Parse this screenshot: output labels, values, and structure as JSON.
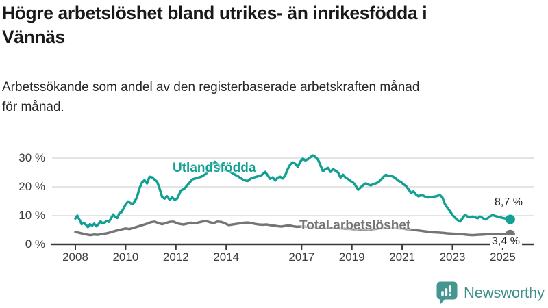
{
  "header": {
    "title": "Högre arbetslöshet bland utrikes- än inrikesfödda i\nVännäs",
    "subtitle": "Arbetssökande som andel av den registerbaserade arbetskraften månad\nför månad."
  },
  "footer": {
    "brand": "Newsworthy",
    "logo_icon": "bar-chart-speech-bubble-icon",
    "brand_color": "#3e8e89",
    "logo_bubble_color": "#459690"
  },
  "chart_data": {
    "type": "line",
    "title": "Högre arbetslöshet bland utrikes- än inrikesfödda i Vännäs",
    "subtitle": "Arbetssökande som andel av den registerbaserade arbetskraften månad för månad.",
    "unit": "%",
    "xlim": [
      2007.8,
      2025.6
    ],
    "ylim": [
      0,
      33
    ],
    "grid": "horizontal",
    "axis_color": "#3a3a3a",
    "grid_color": "#dcdcdc",
    "x_ticks": [
      {
        "value": 2008,
        "label": "2008"
      },
      {
        "value": 2010,
        "label": "2010"
      },
      {
        "value": 2012,
        "label": "2012"
      },
      {
        "value": 2014,
        "label": "2014"
      },
      {
        "value": 2017,
        "label": "2017"
      },
      {
        "value": 2019,
        "label": "2019"
      },
      {
        "value": 2021,
        "label": "2021"
      },
      {
        "value": 2023,
        "label": "2023"
      },
      {
        "value": 2025,
        "label": "2025"
      }
    ],
    "y_ticks": [
      {
        "value": 0,
        "label": "0 %"
      },
      {
        "value": 10,
        "label": "10 %"
      },
      {
        "value": 20,
        "label": "20 %"
      },
      {
        "value": 30,
        "label": "30 %"
      }
    ],
    "series": [
      {
        "name": "Utlandsfödda",
        "color": "#12a092",
        "end_label": "8,7 %",
        "end_value": 8.7,
        "points": [
          [
            2008.0,
            9.0
          ],
          [
            2008.08,
            10.0
          ],
          [
            2008.17,
            8.5
          ],
          [
            2008.25,
            7.0
          ],
          [
            2008.33,
            7.5
          ],
          [
            2008.42,
            6.8
          ],
          [
            2008.5,
            6.0
          ],
          [
            2008.58,
            7.0
          ],
          [
            2008.67,
            6.5
          ],
          [
            2008.75,
            7.2
          ],
          [
            2008.83,
            6.3
          ],
          [
            2008.92,
            7.0
          ],
          [
            2009.0,
            8.0
          ],
          [
            2009.08,
            7.4
          ],
          [
            2009.17,
            7.6
          ],
          [
            2009.25,
            8.2
          ],
          [
            2009.33,
            7.8
          ],
          [
            2009.42,
            9.0
          ],
          [
            2009.5,
            10.4
          ],
          [
            2009.58,
            9.6
          ],
          [
            2009.67,
            9.2
          ],
          [
            2009.75,
            10.8
          ],
          [
            2009.83,
            11.2
          ],
          [
            2009.92,
            12.5
          ],
          [
            2010.0,
            13.9
          ],
          [
            2010.1,
            14.9
          ],
          [
            2010.2,
            14.3
          ],
          [
            2010.3,
            14.1
          ],
          [
            2010.45,
            16.3
          ],
          [
            2010.55,
            19.5
          ],
          [
            2010.65,
            21.5
          ],
          [
            2010.75,
            22.3
          ],
          [
            2010.85,
            21.2
          ],
          [
            2010.95,
            23.5
          ],
          [
            2011.05,
            23.3
          ],
          [
            2011.15,
            22.5
          ],
          [
            2011.25,
            21.8
          ],
          [
            2011.35,
            19.5
          ],
          [
            2011.45,
            16.5
          ],
          [
            2011.55,
            15.9
          ],
          [
            2011.65,
            16.7
          ],
          [
            2011.75,
            15.5
          ],
          [
            2011.85,
            16.3
          ],
          [
            2011.95,
            15.5
          ],
          [
            2012.05,
            15.9
          ],
          [
            2012.2,
            18.7
          ],
          [
            2012.35,
            19.5
          ],
          [
            2012.5,
            21.0
          ],
          [
            2012.65,
            22.6
          ],
          [
            2012.8,
            23.0
          ],
          [
            2013.0,
            23.5
          ],
          [
            2013.2,
            24.5
          ],
          [
            2013.4,
            27.5
          ],
          [
            2013.55,
            28.7
          ],
          [
            2013.7,
            27.5
          ],
          [
            2013.9,
            26.0
          ],
          [
            2014.1,
            25.5
          ],
          [
            2014.3,
            24.5
          ],
          [
            2014.5,
            23.5
          ],
          [
            2014.7,
            22.3
          ],
          [
            2014.85,
            22.0
          ],
          [
            2015.0,
            23.0
          ],
          [
            2015.2,
            23.5
          ],
          [
            2015.4,
            24.0
          ],
          [
            2015.55,
            25.2
          ],
          [
            2015.65,
            24.0
          ],
          [
            2015.75,
            22.8
          ],
          [
            2015.85,
            23.3
          ],
          [
            2015.95,
            22.2
          ],
          [
            2016.05,
            23.2
          ],
          [
            2016.15,
            23.5
          ],
          [
            2016.25,
            22.9
          ],
          [
            2016.35,
            24.0
          ],
          [
            2016.45,
            26.2
          ],
          [
            2016.55,
            27.8
          ],
          [
            2016.65,
            28.5
          ],
          [
            2016.75,
            28.0
          ],
          [
            2016.85,
            27.0
          ],
          [
            2016.95,
            28.8
          ],
          [
            2017.05,
            29.8
          ],
          [
            2017.15,
            29.2
          ],
          [
            2017.25,
            29.6
          ],
          [
            2017.35,
            30.3
          ],
          [
            2017.45,
            30.9
          ],
          [
            2017.55,
            30.4
          ],
          [
            2017.65,
            29.5
          ],
          [
            2017.75,
            27.5
          ],
          [
            2017.85,
            25.4
          ],
          [
            2017.95,
            26.2
          ],
          [
            2018.05,
            26.6
          ],
          [
            2018.15,
            25.2
          ],
          [
            2018.25,
            26.2
          ],
          [
            2018.35,
            25.6
          ],
          [
            2018.45,
            25.0
          ],
          [
            2018.55,
            23.2
          ],
          [
            2018.65,
            24.2
          ],
          [
            2018.75,
            23.2
          ],
          [
            2018.85,
            22.7
          ],
          [
            2018.95,
            22.0
          ],
          [
            2019.05,
            21.5
          ],
          [
            2019.15,
            20.4
          ],
          [
            2019.25,
            19.0
          ],
          [
            2019.35,
            19.8
          ],
          [
            2019.45,
            20.6
          ],
          [
            2019.55,
            21.2
          ],
          [
            2019.65,
            20.8
          ],
          [
            2019.75,
            20.5
          ],
          [
            2019.85,
            20.9
          ],
          [
            2019.95,
            21.2
          ],
          [
            2020.05,
            21.6
          ],
          [
            2020.15,
            22.4
          ],
          [
            2020.25,
            23.4
          ],
          [
            2020.35,
            24.2
          ],
          [
            2020.45,
            23.8
          ],
          [
            2020.55,
            23.8
          ],
          [
            2020.65,
            23.5
          ],
          [
            2020.75,
            22.9
          ],
          [
            2020.85,
            22.1
          ],
          [
            2020.95,
            21.7
          ],
          [
            2021.05,
            20.9
          ],
          [
            2021.15,
            20.3
          ],
          [
            2021.25,
            19.2
          ],
          [
            2021.35,
            17.9
          ],
          [
            2021.45,
            18.4
          ],
          [
            2021.55,
            17.3
          ],
          [
            2021.65,
            16.7
          ],
          [
            2021.75,
            17.1
          ],
          [
            2021.85,
            16.9
          ],
          [
            2021.95,
            16.4
          ],
          [
            2022.05,
            16.3
          ],
          [
            2022.2,
            16.5
          ],
          [
            2022.35,
            16.7
          ],
          [
            2022.5,
            17.1
          ],
          [
            2022.6,
            16.3
          ],
          [
            2022.7,
            14.0
          ],
          [
            2022.8,
            12.7
          ],
          [
            2022.9,
            11.6
          ],
          [
            2023.0,
            10.2
          ],
          [
            2023.1,
            9.3
          ],
          [
            2023.2,
            8.5
          ],
          [
            2023.3,
            7.9
          ],
          [
            2023.4,
            9.1
          ],
          [
            2023.5,
            10.3
          ],
          [
            2023.6,
            9.7
          ],
          [
            2023.7,
            9.4
          ],
          [
            2023.8,
            9.7
          ],
          [
            2023.9,
            9.4
          ],
          [
            2024.0,
            9.1
          ],
          [
            2024.1,
            9.7
          ],
          [
            2024.2,
            9.2
          ],
          [
            2024.3,
            8.7
          ],
          [
            2024.4,
            9.1
          ],
          [
            2024.5,
            9.8
          ],
          [
            2024.6,
            10.2
          ],
          [
            2024.7,
            9.9
          ],
          [
            2024.8,
            9.6
          ],
          [
            2024.9,
            9.4
          ],
          [
            2025.0,
            9.2
          ],
          [
            2025.1,
            9.0
          ],
          [
            2025.2,
            8.8
          ],
          [
            2025.3,
            8.7
          ]
        ]
      },
      {
        "name": "Total arbetslöshet",
        "color": "#757575",
        "end_label": "3,4 %",
        "end_value": 3.4,
        "points": [
          [
            2008.0,
            4.3
          ],
          [
            2008.15,
            4.0
          ],
          [
            2008.3,
            3.7
          ],
          [
            2008.45,
            3.4
          ],
          [
            2008.6,
            3.2
          ],
          [
            2008.75,
            3.4
          ],
          [
            2008.9,
            3.3
          ],
          [
            2009.0,
            3.5
          ],
          [
            2009.15,
            3.7
          ],
          [
            2009.3,
            3.9
          ],
          [
            2009.45,
            4.3
          ],
          [
            2009.6,
            4.7
          ],
          [
            2009.75,
            5.0
          ],
          [
            2009.9,
            5.3
          ],
          [
            2010.0,
            5.5
          ],
          [
            2010.15,
            5.3
          ],
          [
            2010.3,
            5.7
          ],
          [
            2010.45,
            6.1
          ],
          [
            2010.6,
            6.5
          ],
          [
            2010.75,
            6.9
          ],
          [
            2010.9,
            7.3
          ],
          [
            2011.0,
            7.7
          ],
          [
            2011.15,
            7.9
          ],
          [
            2011.3,
            7.4
          ],
          [
            2011.45,
            7.0
          ],
          [
            2011.6,
            7.4
          ],
          [
            2011.75,
            7.8
          ],
          [
            2011.9,
            7.9
          ],
          [
            2012.0,
            7.5
          ],
          [
            2012.15,
            7.1
          ],
          [
            2012.3,
            6.9
          ],
          [
            2012.45,
            7.2
          ],
          [
            2012.6,
            7.5
          ],
          [
            2012.75,
            7.3
          ],
          [
            2012.9,
            7.6
          ],
          [
            2013.05,
            7.9
          ],
          [
            2013.2,
            8.1
          ],
          [
            2013.35,
            7.7
          ],
          [
            2013.5,
            7.4
          ],
          [
            2013.65,
            7.9
          ],
          [
            2013.8,
            7.8
          ],
          [
            2013.95,
            7.3
          ],
          [
            2014.1,
            6.7
          ],
          [
            2014.25,
            6.9
          ],
          [
            2014.4,
            7.1
          ],
          [
            2014.55,
            7.3
          ],
          [
            2014.7,
            7.5
          ],
          [
            2014.85,
            7.6
          ],
          [
            2015.0,
            7.4
          ],
          [
            2015.15,
            7.1
          ],
          [
            2015.3,
            6.9
          ],
          [
            2015.45,
            6.8
          ],
          [
            2015.6,
            6.9
          ],
          [
            2015.75,
            6.7
          ],
          [
            2015.9,
            6.5
          ],
          [
            2016.05,
            6.3
          ],
          [
            2016.2,
            6.2
          ],
          [
            2016.35,
            6.4
          ],
          [
            2016.5,
            6.6
          ],
          [
            2016.65,
            6.3
          ],
          [
            2016.8,
            6.1
          ],
          [
            2017.0,
            6.2
          ],
          [
            2017.25,
            6.1
          ],
          [
            2017.5,
            6.0
          ],
          [
            2017.75,
            5.9
          ],
          [
            2018.0,
            5.8
          ],
          [
            2018.25,
            5.7
          ],
          [
            2018.5,
            5.6
          ],
          [
            2018.75,
            5.4
          ],
          [
            2019.0,
            5.3
          ],
          [
            2019.25,
            5.2
          ],
          [
            2019.5,
            5.1
          ],
          [
            2019.75,
            5.2
          ],
          [
            2020.0,
            5.4
          ],
          [
            2020.25,
            5.7
          ],
          [
            2020.5,
            5.8
          ],
          [
            2020.75,
            5.7
          ],
          [
            2021.0,
            5.5
          ],
          [
            2021.25,
            5.2
          ],
          [
            2021.5,
            5.0
          ],
          [
            2021.75,
            4.7
          ],
          [
            2022.0,
            4.4
          ],
          [
            2022.2,
            4.2
          ],
          [
            2022.4,
            4.1
          ],
          [
            2022.6,
            4.0
          ],
          [
            2022.8,
            3.8
          ],
          [
            2023.0,
            3.7
          ],
          [
            2023.2,
            3.6
          ],
          [
            2023.4,
            3.5
          ],
          [
            2023.6,
            3.3
          ],
          [
            2023.8,
            3.2
          ],
          [
            2024.0,
            3.3
          ],
          [
            2024.2,
            3.4
          ],
          [
            2024.4,
            3.5
          ],
          [
            2024.6,
            3.6
          ],
          [
            2024.8,
            3.5
          ],
          [
            2025.0,
            3.4
          ],
          [
            2025.15,
            3.4
          ],
          [
            2025.3,
            3.4
          ]
        ]
      }
    ]
  }
}
